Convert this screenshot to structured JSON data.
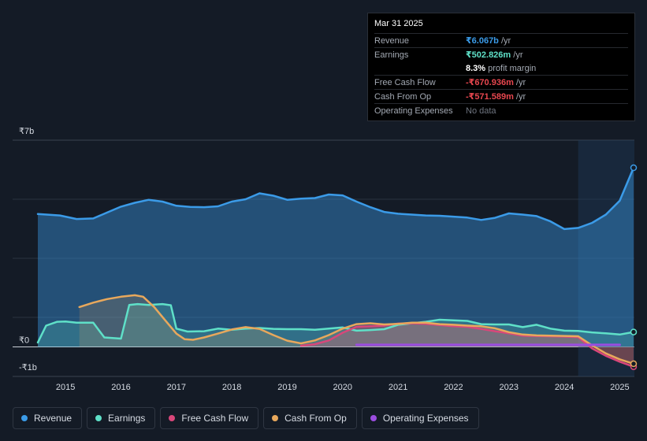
{
  "tooltip": {
    "date": "Mar 31 2025",
    "revenue_label": "Revenue",
    "revenue_value": "₹6.067b",
    "revenue_unit": " /yr",
    "earnings_label": "Earnings",
    "earnings_value": "₹502.826m",
    "earnings_unit": " /yr",
    "margin_value": "8.3%",
    "margin_label": " profit margin",
    "fcf_label": "Free Cash Flow",
    "fcf_value": "-₹670.936m",
    "fcf_unit": " /yr",
    "cfo_label": "Cash From Op",
    "cfo_value": "-₹571.589m",
    "cfo_unit": " /yr",
    "opex_label": "Operating Expenses",
    "opex_value": "No data"
  },
  "legend": [
    {
      "name": "legend-revenue",
      "label": "Revenue",
      "color": "#3b9be8"
    },
    {
      "name": "legend-earnings",
      "label": "Earnings",
      "color": "#5fe0c8"
    },
    {
      "name": "legend-free-cash-flow",
      "label": "Free Cash Flow",
      "color": "#d9477a"
    },
    {
      "name": "legend-cash-from-op",
      "label": "Cash From Op",
      "color": "#e8a85c"
    },
    {
      "name": "legend-operating-expenses",
      "label": "Operating Expenses",
      "color": "#9b4de0"
    }
  ],
  "chart_data": {
    "type": "area",
    "y_unit": "billions INR",
    "ylim": [
      -1,
      7
    ],
    "y_tick_labels": [
      {
        "value": 7,
        "label": "₹7b"
      },
      {
        "value": 0,
        "label": "₹0"
      },
      {
        "value": -1,
        "label": "-₹1b"
      }
    ],
    "x_tick_labels": [
      "2015",
      "2016",
      "2017",
      "2018",
      "2019",
      "2020",
      "2021",
      "2022",
      "2023",
      "2024",
      "2025"
    ],
    "xlim": [
      2014.5,
      2025.25
    ],
    "highlight_start": 2024.25,
    "series": [
      {
        "name": "Revenue",
        "color": "#3b9be8",
        "fill": true,
        "points": [
          [
            2014.5,
            4.5
          ],
          [
            2014.9,
            4.45
          ],
          [
            2015.2,
            4.33
          ],
          [
            2015.5,
            4.35
          ],
          [
            2015.75,
            4.55
          ],
          [
            2016.0,
            4.75
          ],
          [
            2016.25,
            4.88
          ],
          [
            2016.5,
            4.98
          ],
          [
            2016.75,
            4.92
          ],
          [
            2017.0,
            4.78
          ],
          [
            2017.25,
            4.74
          ],
          [
            2017.5,
            4.73
          ],
          [
            2017.75,
            4.76
          ],
          [
            2018.0,
            4.92
          ],
          [
            2018.25,
            5.0
          ],
          [
            2018.5,
            5.2
          ],
          [
            2018.75,
            5.12
          ],
          [
            2019.0,
            4.98
          ],
          [
            2019.25,
            5.02
          ],
          [
            2019.5,
            5.04
          ],
          [
            2019.75,
            5.16
          ],
          [
            2020.0,
            5.13
          ],
          [
            2020.25,
            4.92
          ],
          [
            2020.5,
            4.73
          ],
          [
            2020.75,
            4.57
          ],
          [
            2021.0,
            4.51
          ],
          [
            2021.25,
            4.48
          ],
          [
            2021.5,
            4.45
          ],
          [
            2021.75,
            4.44
          ],
          [
            2022.0,
            4.41
          ],
          [
            2022.25,
            4.38
          ],
          [
            2022.5,
            4.3
          ],
          [
            2022.75,
            4.37
          ],
          [
            2023.0,
            4.52
          ],
          [
            2023.25,
            4.48
          ],
          [
            2023.5,
            4.43
          ],
          [
            2023.75,
            4.25
          ],
          [
            2024.0,
            3.99
          ],
          [
            2024.25,
            4.03
          ],
          [
            2024.5,
            4.2
          ],
          [
            2024.75,
            4.48
          ],
          [
            2025.0,
            4.95
          ],
          [
            2025.25,
            6.067
          ]
        ]
      },
      {
        "name": "Earnings",
        "color": "#5fe0c8",
        "fill": true,
        "points": [
          [
            2014.5,
            0.15
          ],
          [
            2014.65,
            0.72
          ],
          [
            2014.85,
            0.85
          ],
          [
            2015.0,
            0.86
          ],
          [
            2015.2,
            0.82
          ],
          [
            2015.5,
            0.82
          ],
          [
            2015.7,
            0.32
          ],
          [
            2016.0,
            0.28
          ],
          [
            2016.15,
            1.42
          ],
          [
            2016.3,
            1.45
          ],
          [
            2016.5,
            1.42
          ],
          [
            2016.75,
            1.45
          ],
          [
            2016.9,
            1.41
          ],
          [
            2017.0,
            0.62
          ],
          [
            2017.2,
            0.52
          ],
          [
            2017.5,
            0.53
          ],
          [
            2017.75,
            0.62
          ],
          [
            2018.0,
            0.58
          ],
          [
            2018.25,
            0.62
          ],
          [
            2018.5,
            0.64
          ],
          [
            2018.75,
            0.61
          ],
          [
            2019.0,
            0.6
          ],
          [
            2019.25,
            0.6
          ],
          [
            2019.5,
            0.58
          ],
          [
            2019.75,
            0.62
          ],
          [
            2020.0,
            0.66
          ],
          [
            2020.25,
            0.55
          ],
          [
            2020.5,
            0.57
          ],
          [
            2020.75,
            0.6
          ],
          [
            2021.0,
            0.75
          ],
          [
            2021.25,
            0.8
          ],
          [
            2021.5,
            0.85
          ],
          [
            2021.75,
            0.92
          ],
          [
            2022.0,
            0.9
          ],
          [
            2022.25,
            0.88
          ],
          [
            2022.5,
            0.77
          ],
          [
            2022.75,
            0.76
          ],
          [
            2023.0,
            0.76
          ],
          [
            2023.25,
            0.67
          ],
          [
            2023.5,
            0.75
          ],
          [
            2023.75,
            0.62
          ],
          [
            2024.0,
            0.55
          ],
          [
            2024.25,
            0.54
          ],
          [
            2024.5,
            0.49
          ],
          [
            2024.75,
            0.46
          ],
          [
            2025.0,
            0.42
          ],
          [
            2025.25,
            0.503
          ]
        ]
      },
      {
        "name": "Free Cash Flow",
        "color": "#d9477a",
        "fill": true,
        "points": [
          [
            2019.25,
            0.04
          ],
          [
            2019.5,
            0.09
          ],
          [
            2019.75,
            0.22
          ],
          [
            2020.0,
            0.48
          ],
          [
            2020.25,
            0.68
          ],
          [
            2020.5,
            0.7
          ],
          [
            2020.75,
            0.72
          ],
          [
            2021.0,
            0.79
          ],
          [
            2021.25,
            0.8
          ],
          [
            2021.5,
            0.78
          ],
          [
            2021.75,
            0.74
          ],
          [
            2022.0,
            0.7
          ],
          [
            2022.25,
            0.68
          ],
          [
            2022.5,
            0.61
          ],
          [
            2022.75,
            0.53
          ],
          [
            2023.0,
            0.46
          ],
          [
            2023.25,
            0.38
          ],
          [
            2023.5,
            0.37
          ],
          [
            2023.75,
            0.36
          ],
          [
            2024.0,
            0.35
          ],
          [
            2024.25,
            0.33
          ],
          [
            2024.5,
            -0.05
          ],
          [
            2024.75,
            -0.3
          ],
          [
            2025.0,
            -0.5
          ],
          [
            2025.25,
            -0.671
          ]
        ]
      },
      {
        "name": "Cash From Op",
        "color": "#e8a85c",
        "fill": true,
        "points": [
          [
            2015.25,
            1.35
          ],
          [
            2015.5,
            1.5
          ],
          [
            2015.75,
            1.62
          ],
          [
            2016.0,
            1.7
          ],
          [
            2016.25,
            1.75
          ],
          [
            2016.4,
            1.7
          ],
          [
            2016.6,
            1.35
          ],
          [
            2016.8,
            0.9
          ],
          [
            2017.0,
            0.45
          ],
          [
            2017.15,
            0.26
          ],
          [
            2017.3,
            0.24
          ],
          [
            2017.5,
            0.32
          ],
          [
            2017.75,
            0.45
          ],
          [
            2018.0,
            0.59
          ],
          [
            2018.25,
            0.67
          ],
          [
            2018.5,
            0.61
          ],
          [
            2018.75,
            0.4
          ],
          [
            2019.0,
            0.21
          ],
          [
            2019.25,
            0.12
          ],
          [
            2019.5,
            0.22
          ],
          [
            2019.75,
            0.4
          ],
          [
            2020.0,
            0.62
          ],
          [
            2020.25,
            0.77
          ],
          [
            2020.5,
            0.8
          ],
          [
            2020.75,
            0.76
          ],
          [
            2021.0,
            0.78
          ],
          [
            2021.25,
            0.82
          ],
          [
            2021.5,
            0.82
          ],
          [
            2021.75,
            0.77
          ],
          [
            2022.0,
            0.75
          ],
          [
            2022.25,
            0.72
          ],
          [
            2022.5,
            0.7
          ],
          [
            2022.75,
            0.63
          ],
          [
            2023.0,
            0.5
          ],
          [
            2023.25,
            0.42
          ],
          [
            2023.5,
            0.39
          ],
          [
            2023.75,
            0.38
          ],
          [
            2024.0,
            0.37
          ],
          [
            2024.25,
            0.36
          ],
          [
            2024.5,
            0.05
          ],
          [
            2024.75,
            -0.22
          ],
          [
            2025.0,
            -0.42
          ],
          [
            2025.25,
            -0.572
          ]
        ]
      },
      {
        "name": "Operating Expenses",
        "color": "#9b4de0",
        "fill": false,
        "points": [
          [
            2020.25,
            0.07
          ],
          [
            2021.0,
            0.07
          ],
          [
            2022.0,
            0.07
          ],
          [
            2023.0,
            0.07
          ],
          [
            2024.0,
            0.07
          ],
          [
            2025.0,
            0.07
          ]
        ]
      }
    ]
  }
}
